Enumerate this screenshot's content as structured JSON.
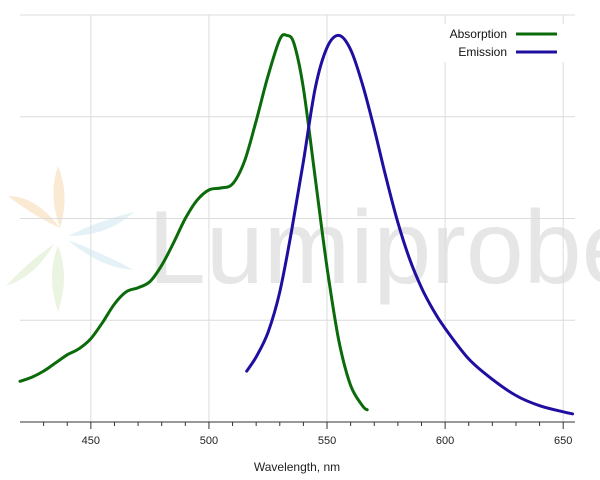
{
  "watermark": {
    "text": "Lumiprobe"
  },
  "chart_data": {
    "type": "line",
    "title": "",
    "xlabel": "Wavelength, nm",
    "ylabel": "",
    "xlim": [
      420,
      655
    ],
    "ylim": [
      0,
      1
    ],
    "xticks": [
      "450",
      "500",
      "550",
      "600",
      "650"
    ],
    "xtick_values": [
      450,
      500,
      550,
      600,
      650
    ],
    "grid": true,
    "legend": "top-right",
    "series": [
      {
        "name": "Absorption",
        "color": "#0b6b0b",
        "x": [
          420,
          425,
          430,
          435,
          440,
          445,
          450,
          455,
          460,
          465,
          470,
          475,
          480,
          485,
          490,
          495,
          500,
          505,
          510,
          515,
          520,
          525,
          530,
          533,
          536,
          540,
          545,
          550,
          555,
          560,
          565,
          567
        ],
        "y": [
          0.1,
          0.11,
          0.125,
          0.145,
          0.165,
          0.18,
          0.205,
          0.245,
          0.29,
          0.32,
          0.33,
          0.345,
          0.385,
          0.44,
          0.5,
          0.545,
          0.57,
          0.575,
          0.585,
          0.64,
          0.74,
          0.85,
          0.94,
          0.95,
          0.93,
          0.82,
          0.6,
          0.38,
          0.2,
          0.09,
          0.04,
          0.03
        ]
      },
      {
        "name": "Emission",
        "color": "#1f0fa0",
        "x": [
          516,
          520,
          525,
          530,
          535,
          540,
          545,
          550,
          555,
          560,
          565,
          570,
          575,
          580,
          585,
          590,
          595,
          600,
          610,
          620,
          630,
          640,
          650,
          654
        ],
        "y": [
          0.125,
          0.16,
          0.22,
          0.32,
          0.47,
          0.64,
          0.82,
          0.92,
          0.95,
          0.915,
          0.83,
          0.72,
          0.6,
          0.49,
          0.4,
          0.33,
          0.275,
          0.23,
          0.155,
          0.105,
          0.065,
          0.04,
          0.025,
          0.02
        ]
      }
    ]
  }
}
